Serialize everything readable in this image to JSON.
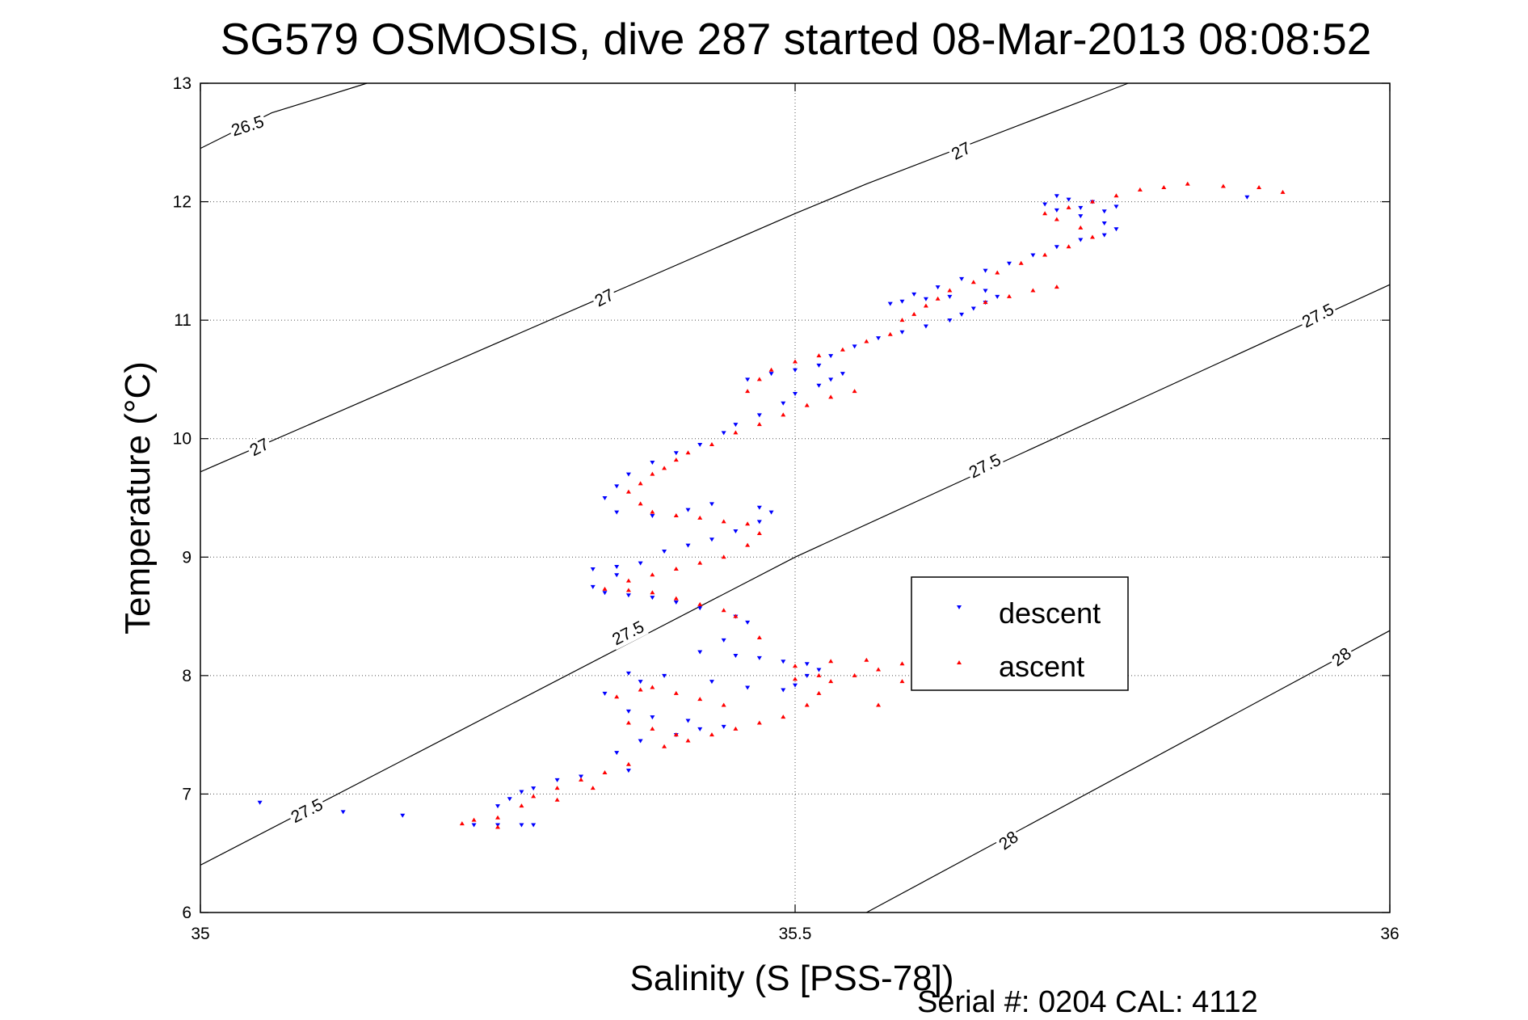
{
  "chart_data": {
    "type": "scatter",
    "title": "SG579 OSMOSIS, dive 287 started 08-Mar-2013 08:08:52",
    "xlabel": "Salinity (S [PSS-78])",
    "ylabel": "Temperature (°C)",
    "xlim": [
      35,
      36
    ],
    "ylim": [
      6,
      13
    ],
    "xticks": [
      35,
      35.5,
      36
    ],
    "xtick_labels": [
      "35",
      "35.5",
      "36"
    ],
    "yticks": [
      6,
      7,
      8,
      9,
      10,
      11,
      12,
      13
    ],
    "ytick_labels": [
      "6",
      "7",
      "8",
      "9",
      "10",
      "11",
      "12",
      "13"
    ],
    "grid": true,
    "legend_placement": "center-right",
    "footer": "Serial #: 0204  CAL: 4112",
    "series": [
      {
        "name": "descent",
        "color": "#0000ff",
        "marker": "triangle-down",
        "points": [
          [
            35.05,
            6.93
          ],
          [
            35.12,
            6.85
          ],
          [
            35.17,
            6.82
          ],
          [
            35.23,
            6.74
          ],
          [
            35.25,
            6.74
          ],
          [
            35.27,
            6.74
          ],
          [
            35.28,
            6.74
          ],
          [
            35.25,
            6.9
          ],
          [
            35.26,
            6.96
          ],
          [
            35.27,
            7.02
          ],
          [
            35.28,
            7.05
          ],
          [
            35.3,
            7.12
          ],
          [
            35.32,
            7.15
          ],
          [
            35.36,
            7.2
          ],
          [
            35.35,
            7.35
          ],
          [
            35.37,
            7.45
          ],
          [
            35.4,
            7.5
          ],
          [
            35.42,
            7.55
          ],
          [
            35.44,
            7.57
          ],
          [
            35.41,
            7.62
          ],
          [
            35.38,
            7.65
          ],
          [
            35.36,
            7.7
          ],
          [
            35.34,
            7.85
          ],
          [
            35.37,
            7.95
          ],
          [
            35.39,
            8.0
          ],
          [
            35.36,
            8.02
          ],
          [
            35.43,
            7.95
          ],
          [
            35.46,
            7.9
          ],
          [
            35.49,
            7.88
          ],
          [
            35.5,
            7.92
          ],
          [
            35.51,
            8.0
          ],
          [
            35.52,
            8.05
          ],
          [
            35.51,
            8.1
          ],
          [
            35.49,
            8.12
          ],
          [
            35.47,
            8.15
          ],
          [
            35.45,
            8.17
          ],
          [
            35.42,
            8.2
          ],
          [
            35.44,
            8.3
          ],
          [
            35.46,
            8.45
          ],
          [
            35.45,
            8.5
          ],
          [
            35.42,
            8.57
          ],
          [
            35.4,
            8.62
          ],
          [
            35.38,
            8.66
          ],
          [
            35.36,
            8.68
          ],
          [
            35.34,
            8.7
          ],
          [
            35.33,
            8.75
          ],
          [
            35.35,
            8.85
          ],
          [
            35.33,
            8.9
          ],
          [
            35.35,
            8.92
          ],
          [
            35.37,
            8.95
          ],
          [
            35.39,
            9.05
          ],
          [
            35.41,
            9.1
          ],
          [
            35.43,
            9.15
          ],
          [
            35.45,
            9.22
          ],
          [
            35.47,
            9.3
          ],
          [
            35.48,
            9.38
          ],
          [
            35.47,
            9.42
          ],
          [
            35.43,
            9.45
          ],
          [
            35.41,
            9.4
          ],
          [
            35.38,
            9.35
          ],
          [
            35.35,
            9.38
          ],
          [
            35.34,
            9.5
          ],
          [
            35.35,
            9.6
          ],
          [
            35.36,
            9.7
          ],
          [
            35.38,
            9.8
          ],
          [
            35.4,
            9.88
          ],
          [
            35.42,
            9.95
          ],
          [
            35.44,
            10.05
          ],
          [
            35.45,
            10.12
          ],
          [
            35.47,
            10.2
          ],
          [
            35.49,
            10.3
          ],
          [
            35.5,
            10.38
          ],
          [
            35.52,
            10.45
          ],
          [
            35.53,
            10.5
          ],
          [
            35.54,
            10.55
          ],
          [
            35.52,
            10.62
          ],
          [
            35.5,
            10.58
          ],
          [
            35.48,
            10.55
          ],
          [
            35.46,
            10.5
          ],
          [
            35.53,
            10.7
          ],
          [
            35.55,
            10.78
          ],
          [
            35.57,
            10.85
          ],
          [
            35.59,
            10.9
          ],
          [
            35.61,
            10.95
          ],
          [
            35.63,
            11.0
          ],
          [
            35.64,
            11.05
          ],
          [
            35.65,
            11.1
          ],
          [
            35.66,
            11.15
          ],
          [
            35.67,
            11.2
          ],
          [
            35.66,
            11.25
          ],
          [
            35.63,
            11.2
          ],
          [
            35.61,
            11.18
          ],
          [
            35.59,
            11.16
          ],
          [
            35.58,
            11.14
          ],
          [
            35.6,
            11.22
          ],
          [
            35.62,
            11.28
          ],
          [
            35.64,
            11.35
          ],
          [
            35.66,
            11.42
          ],
          [
            35.68,
            11.48
          ],
          [
            35.7,
            11.55
          ],
          [
            35.72,
            11.62
          ],
          [
            35.74,
            11.68
          ],
          [
            35.76,
            11.72
          ],
          [
            35.77,
            11.77
          ],
          [
            35.76,
            11.82
          ],
          [
            35.74,
            11.88
          ],
          [
            35.72,
            11.93
          ],
          [
            35.71,
            11.98
          ],
          [
            35.73,
            12.02
          ],
          [
            35.75,
            12.0
          ],
          [
            35.77,
            11.96
          ],
          [
            35.76,
            11.92
          ],
          [
            35.74,
            11.95
          ],
          [
            35.72,
            12.05
          ],
          [
            35.88,
            12.04
          ]
        ]
      },
      {
        "name": "ascent",
        "color": "#ff0000",
        "marker": "triangle-up",
        "points": [
          [
            35.22,
            6.75
          ],
          [
            35.23,
            6.78
          ],
          [
            35.25,
            6.8
          ],
          [
            35.27,
            6.9
          ],
          [
            35.28,
            6.98
          ],
          [
            35.3,
            7.05
          ],
          [
            35.32,
            7.12
          ],
          [
            35.34,
            7.18
          ],
          [
            35.36,
            7.25
          ],
          [
            35.39,
            7.4
          ],
          [
            35.41,
            7.45
          ],
          [
            35.43,
            7.5
          ],
          [
            35.45,
            7.55
          ],
          [
            35.47,
            7.6
          ],
          [
            35.49,
            7.65
          ],
          [
            35.51,
            7.75
          ],
          [
            35.52,
            7.85
          ],
          [
            35.53,
            7.95
          ],
          [
            35.55,
            8.0
          ],
          [
            35.57,
            8.05
          ],
          [
            35.59,
            8.1
          ],
          [
            35.56,
            8.13
          ],
          [
            35.53,
            8.12
          ],
          [
            35.5,
            8.08
          ],
          [
            35.52,
            8.0
          ],
          [
            35.5,
            7.97
          ],
          [
            35.35,
            7.82
          ],
          [
            35.37,
            7.88
          ],
          [
            35.38,
            7.9
          ],
          [
            35.4,
            7.85
          ],
          [
            35.42,
            7.8
          ],
          [
            35.44,
            7.75
          ],
          [
            35.36,
            7.6
          ],
          [
            35.38,
            7.55
          ],
          [
            35.4,
            7.5
          ],
          [
            35.47,
            8.32
          ],
          [
            35.45,
            8.5
          ],
          [
            35.44,
            8.55
          ],
          [
            35.42,
            8.6
          ],
          [
            35.4,
            8.65
          ],
          [
            35.38,
            8.7
          ],
          [
            35.36,
            8.72
          ],
          [
            35.34,
            8.73
          ],
          [
            35.36,
            8.8
          ],
          [
            35.38,
            8.85
          ],
          [
            35.4,
            8.9
          ],
          [
            35.42,
            8.95
          ],
          [
            35.44,
            9.0
          ],
          [
            35.46,
            9.1
          ],
          [
            35.47,
            9.2
          ],
          [
            35.46,
            9.28
          ],
          [
            35.44,
            9.3
          ],
          [
            35.42,
            9.33
          ],
          [
            35.4,
            9.35
          ],
          [
            35.38,
            9.38
          ],
          [
            35.37,
            9.45
          ],
          [
            35.36,
            9.55
          ],
          [
            35.37,
            9.62
          ],
          [
            35.38,
            9.7
          ],
          [
            35.39,
            9.75
          ],
          [
            35.4,
            9.82
          ],
          [
            35.41,
            9.88
          ],
          [
            35.43,
            9.95
          ],
          [
            35.45,
            10.05
          ],
          [
            35.47,
            10.12
          ],
          [
            35.49,
            10.2
          ],
          [
            35.51,
            10.28
          ],
          [
            35.53,
            10.35
          ],
          [
            35.55,
            10.4
          ],
          [
            35.46,
            10.4
          ],
          [
            35.47,
            10.5
          ],
          [
            35.48,
            10.58
          ],
          [
            35.5,
            10.65
          ],
          [
            35.52,
            10.7
          ],
          [
            35.54,
            10.75
          ],
          [
            35.56,
            10.82
          ],
          [
            35.58,
            10.88
          ],
          [
            35.59,
            11.0
          ],
          [
            35.6,
            11.05
          ],
          [
            35.61,
            11.12
          ],
          [
            35.62,
            11.18
          ],
          [
            35.63,
            11.25
          ],
          [
            35.65,
            11.32
          ],
          [
            35.67,
            11.4
          ],
          [
            35.69,
            11.48
          ],
          [
            35.71,
            11.55
          ],
          [
            35.73,
            11.62
          ],
          [
            35.75,
            11.7
          ],
          [
            35.74,
            11.78
          ],
          [
            35.72,
            11.85
          ],
          [
            35.71,
            11.9
          ],
          [
            35.73,
            11.95
          ],
          [
            35.75,
            12.0
          ],
          [
            35.77,
            12.05
          ],
          [
            35.79,
            12.1
          ],
          [
            35.81,
            12.12
          ],
          [
            35.83,
            12.15
          ],
          [
            35.86,
            12.13
          ],
          [
            35.89,
            12.12
          ],
          [
            35.91,
            12.08
          ],
          [
            35.66,
            11.15
          ],
          [
            35.68,
            11.2
          ],
          [
            35.7,
            11.25
          ],
          [
            35.72,
            11.28
          ],
          [
            35.25,
            6.72
          ],
          [
            35.3,
            6.95
          ],
          [
            35.33,
            7.05
          ],
          [
            35.57,
            7.75
          ],
          [
            35.59,
            7.95
          ]
        ]
      }
    ],
    "contours": [
      {
        "label": "26.5",
        "points": [
          [
            35,
            12.45
          ],
          [
            35.06,
            12.75
          ],
          [
            35.14,
            13
          ]
        ]
      },
      {
        "label": "27",
        "points": [
          [
            35,
            9.72
          ],
          [
            35.5,
            11.9
          ],
          [
            35.56,
            12.15
          ],
          [
            35.78,
            13
          ]
        ]
      },
      {
        "label": "27.5",
        "points": [
          [
            35,
            6.4
          ],
          [
            35.5,
            9.0
          ],
          [
            36,
            11.3
          ]
        ]
      },
      {
        "label": "28",
        "points": [
          [
            35.56,
            6
          ],
          [
            36,
            8.38
          ]
        ]
      }
    ],
    "contour_labels": [
      {
        "text": "26.5",
        "x": 35.04,
        "y": 12.63,
        "angle": -18
      },
      {
        "text": "27",
        "x": 35.05,
        "y": 9.92,
        "angle": -27
      },
      {
        "text": "27",
        "x": 35.34,
        "y": 11.18,
        "angle": -27
      },
      {
        "text": "27",
        "x": 35.64,
        "y": 12.42,
        "angle": -27
      },
      {
        "text": "27.5",
        "x": 35.09,
        "y": 6.85,
        "angle": -27
      },
      {
        "text": "27.5",
        "x": 35.36,
        "y": 8.35,
        "angle": -27
      },
      {
        "text": "27.5",
        "x": 35.66,
        "y": 9.76,
        "angle": -27
      },
      {
        "text": "27.5",
        "x": 35.94,
        "y": 11.03,
        "angle": -27
      },
      {
        "text": "28",
        "x": 35.68,
        "y": 6.6,
        "angle": -36
      },
      {
        "text": "28",
        "x": 35.96,
        "y": 8.15,
        "angle": -36
      }
    ]
  }
}
